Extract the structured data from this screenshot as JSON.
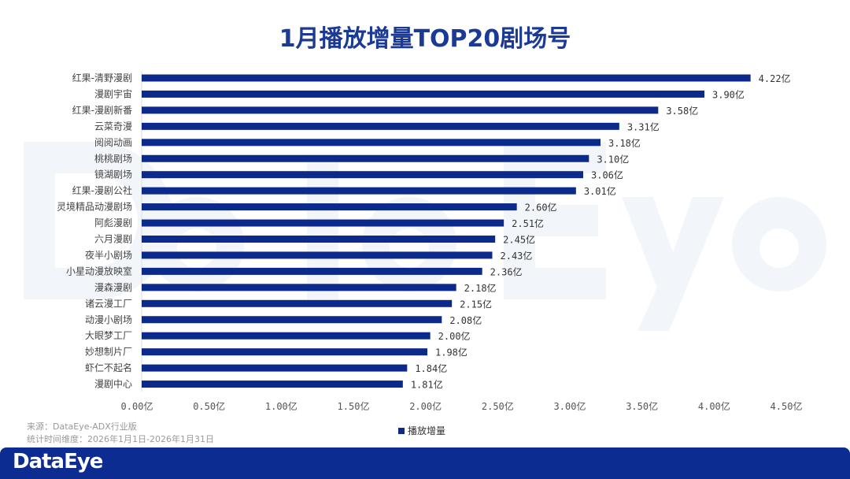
{
  "title": "1月播放增量TOP20剧场号",
  "watermark": "DataEye",
  "source_lines": [
    "来源：DataEye-ADX行业版",
    "统计时间维度：2026年1月1日-2026年1月31日"
  ],
  "footer": {
    "logo": "DataEye"
  },
  "colors": {
    "bar": "#0c2a8c",
    "title": "#1b3a96",
    "footer": "#0d2c91"
  },
  "chart_data": {
    "type": "bar",
    "orientation": "horizontal",
    "title": "1月播放增量TOP20剧场号",
    "categories": [
      "红果-清野漫剧",
      "漫剧宇宙",
      "红果-漫剧新番",
      "云菜奇漫",
      "阅阅动画",
      "桃桃剧场",
      "镜湖剧场",
      "红果-漫剧公社",
      "灵境精品动漫剧场",
      "阿彪漫剧",
      "六月漫剧",
      "夜半小剧场",
      "小星动漫放映室",
      "漫森漫剧",
      "诸云漫工厂",
      "动漫小剧场",
      "大眼梦工厂",
      "妙想制片厂",
      "虾仁不起名",
      "漫剧中心"
    ],
    "series": [
      {
        "name": "播放增量",
        "values": [
          4.22,
          3.9,
          3.58,
          3.31,
          3.18,
          3.1,
          3.06,
          3.01,
          2.6,
          2.51,
          2.45,
          2.43,
          2.36,
          2.18,
          2.15,
          2.08,
          2.0,
          1.98,
          1.84,
          1.81
        ]
      }
    ],
    "data_labels": [
      "4.22亿",
      "3.90亿",
      "3.58亿",
      "3.31亿",
      "3.18亿",
      "3.10亿",
      "3.06亿",
      "3.01亿",
      "2.60亿",
      "2.51亿",
      "2.45亿",
      "2.43亿",
      "2.36亿",
      "2.18亿",
      "2.15亿",
      "2.08亿",
      "2.00亿",
      "1.98亿",
      "1.84亿",
      "1.81亿"
    ],
    "xlim": [
      0,
      4.5
    ],
    "x_ticks": [
      "0.00亿",
      "0.50亿",
      "1.00亿",
      "1.50亿",
      "2.00亿",
      "2.50亿",
      "3.00亿",
      "3.50亿",
      "4.00亿",
      "4.50亿"
    ],
    "unit": "亿",
    "grid": false,
    "legend": "bottom-center"
  }
}
